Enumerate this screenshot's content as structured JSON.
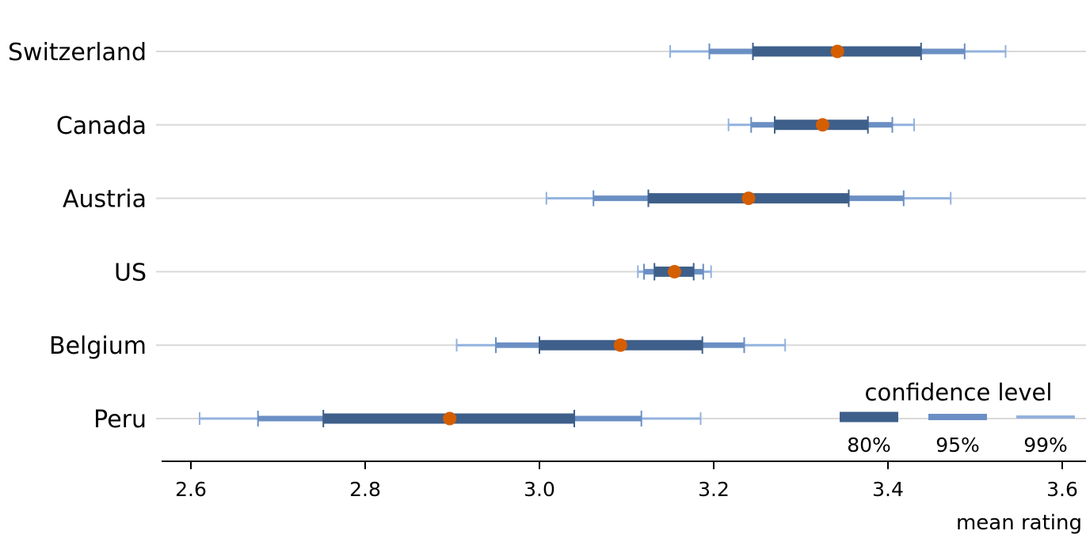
{
  "chart_data": {
    "type": "interval",
    "xlabel": "mean rating",
    "x_ticks": [
      2.6,
      2.8,
      3.0,
      3.2,
      3.4,
      3.6
    ],
    "x_tick_labels": [
      "2.6",
      "2.8",
      "3.0",
      "3.2",
      "3.4",
      "3.6"
    ],
    "xlim": [
      2.55,
      3.65
    ],
    "grid": "horizontal",
    "legend_position": "bottom-right",
    "legend": {
      "title": "confidence level",
      "items": [
        {
          "label": "80%",
          "color": "#3e5f8a"
        },
        {
          "label": "95%",
          "color": "#6b8fc4"
        },
        {
          "label": "99%",
          "color": "#93b2de"
        }
      ]
    },
    "colors": {
      "point": "#d55e00",
      "grid": "#d9d9d9",
      "axis": "#000000"
    },
    "countries": [
      {
        "name": "Switzerland",
        "mean": 3.342,
        "ci80": [
          3.245,
          3.438
        ],
        "ci95": [
          3.195,
          3.488
        ],
        "ci99": [
          3.15,
          3.535
        ]
      },
      {
        "name": "Canada",
        "mean": 3.325,
        "ci80": [
          3.27,
          3.377
        ],
        "ci95": [
          3.243,
          3.405
        ],
        "ci99": [
          3.217,
          3.43
        ]
      },
      {
        "name": "Austria",
        "mean": 3.24,
        "ci80": [
          3.125,
          3.355
        ],
        "ci95": [
          3.062,
          3.418
        ],
        "ci99": [
          3.008,
          3.472
        ]
      },
      {
        "name": "US",
        "mean": 3.155,
        "ci80": [
          3.132,
          3.177
        ],
        "ci95": [
          3.12,
          3.188
        ],
        "ci99": [
          3.113,
          3.197
        ]
      },
      {
        "name": "Belgium",
        "mean": 3.093,
        "ci80": [
          3.0,
          3.187
        ],
        "ci95": [
          2.95,
          3.235
        ],
        "ci99": [
          2.905,
          3.282
        ]
      },
      {
        "name": "Peru",
        "mean": 2.897,
        "ci80": [
          2.752,
          3.04
        ],
        "ci95": [
          2.677,
          3.117
        ],
        "ci99": [
          2.61,
          3.185
        ]
      }
    ]
  }
}
